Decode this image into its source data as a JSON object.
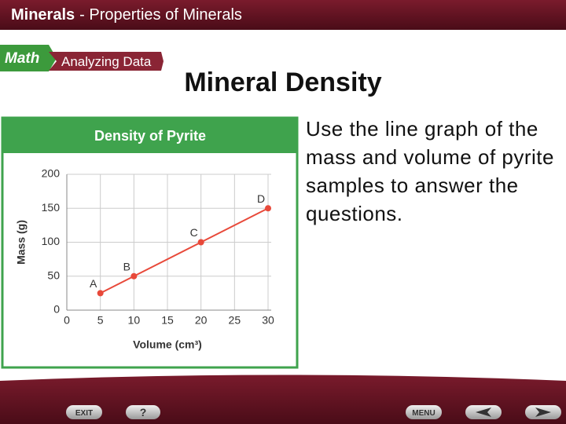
{
  "header": {
    "title_bold": "Minerals",
    "title_rest": "- Properties of Minerals"
  },
  "badge": {
    "left": "Math",
    "right": "Analyzing Data"
  },
  "title": "Mineral Density",
  "chart_data": {
    "type": "line",
    "title": "Density of Pyrite",
    "x_label": "Volume (cm³)",
    "y_label": "Mass (g)",
    "x": [
      5,
      10,
      20,
      30
    ],
    "values": [
      25,
      50,
      100,
      150
    ],
    "point_labels": [
      "A",
      "B",
      "C",
      "D"
    ],
    "color": "#e8493a",
    "xlim": [
      0,
      30
    ],
    "xticks": [
      0,
      5,
      10,
      15,
      20,
      25,
      30
    ],
    "ylim": [
      0,
      200
    ],
    "yticks": [
      0,
      50,
      100,
      150,
      200
    ],
    "grid": true
  },
  "question": "Use the line graph of the mass and volume of pyrite samples to answer the questions.",
  "nav": {
    "exit": "EXIT",
    "help": "?",
    "menu": "MENU"
  }
}
